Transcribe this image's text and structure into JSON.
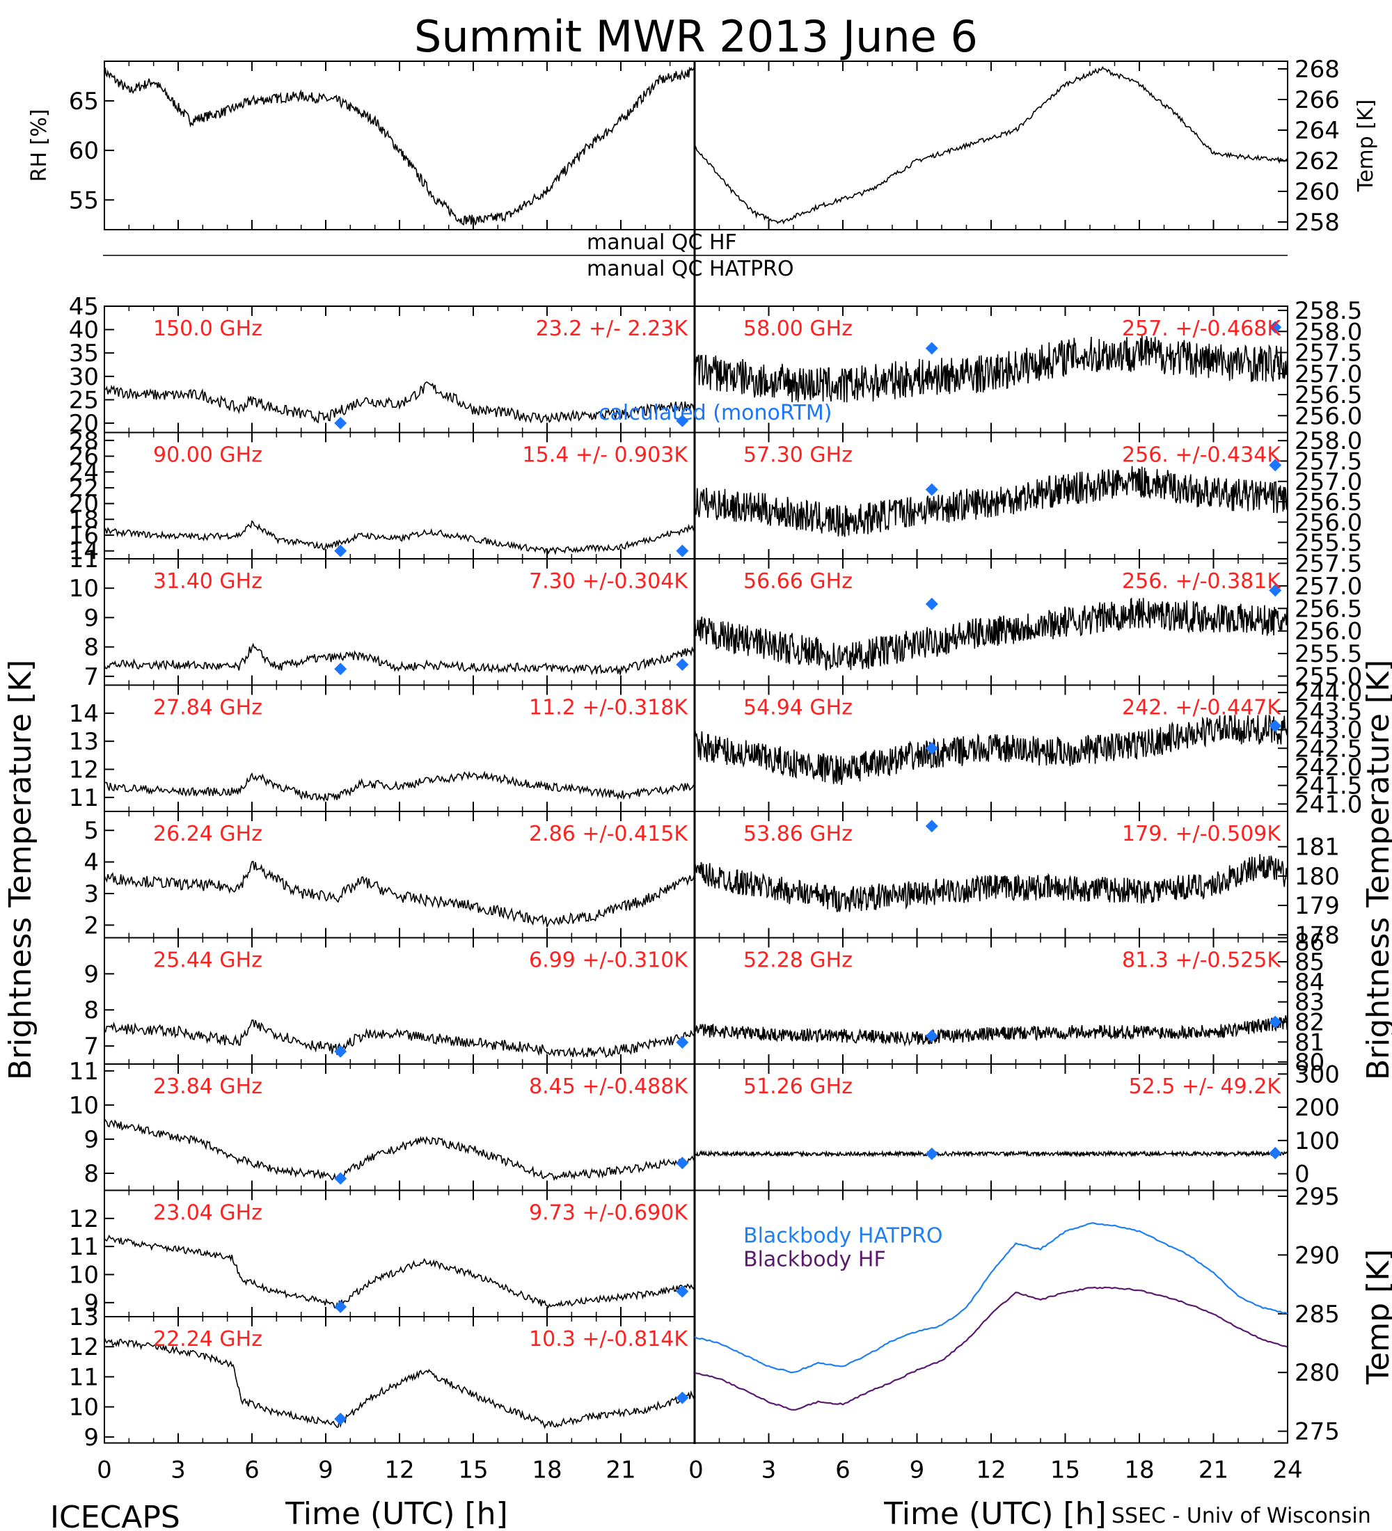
{
  "title": "Summit MWR 2013 June  6",
  "footer": {
    "left": "ICECAPS",
    "right": "SSEC - Univ of Wisconsin"
  },
  "colors": {
    "model_marker": "#1a75ff",
    "channel_label": "#ff2020",
    "hatpro": "#2080f0",
    "hf": "#5a1a6e",
    "trace": "#000000"
  },
  "qc": {
    "hf": "manual  QC HF",
    "hatpro": "manual  QC HATPRO"
  },
  "marker_legend": "calculated (monoRTM)",
  "axes": {
    "xlabel": "Time (UTC) [h]",
    "x_ticks": [
      "0",
      "3",
      "6",
      "9",
      "12",
      "15",
      "18",
      "21",
      "24"
    ],
    "left_ylabel": "Brightness Temperature [K]",
    "right_ylabel": "Brightness Temperature [K]",
    "top_left_ylabel": "RH [%]",
    "top_right_ylabel": "Temp [K]",
    "bottom_right_ylabel": "Temp [K]"
  },
  "chart_data": [
    {
      "type": "line",
      "name": "RH",
      "xlim": [
        0,
        24
      ],
      "ylim": [
        52,
        69
      ],
      "y_ticks": [
        55,
        60,
        65
      ],
      "x": [
        0,
        1,
        2,
        3.5,
        5,
        6,
        8,
        9.5,
        11,
        12,
        13.5,
        14.5,
        15.5,
        16.5,
        18,
        19.5,
        21,
        22.5,
        24
      ],
      "y": [
        68,
        66,
        67,
        63,
        64,
        65,
        65.5,
        65,
        63,
        60,
        55,
        53,
        53,
        53.5,
        56,
        60,
        63,
        67,
        68
      ]
    },
    {
      "type": "line",
      "name": "Temp",
      "xlim": [
        0,
        24
      ],
      "ylim": [
        257.5,
        268.5
      ],
      "y_ticks": [
        258,
        260,
        262,
        264,
        266,
        268
      ],
      "x": [
        0,
        1.5,
        2.5,
        3.5,
        5,
        7,
        9,
        11,
        13,
        15,
        16.5,
        18,
        19.5,
        21,
        22.5,
        24
      ],
      "y": [
        263,
        260,
        258.5,
        258,
        259,
        260,
        262,
        263,
        264,
        267,
        268,
        267,
        265,
        262.5,
        262.2,
        262
      ]
    },
    {
      "type": "line",
      "xlim": [
        0,
        24
      ],
      "x_ticks": [
        0,
        3,
        6,
        9,
        12,
        15,
        18,
        21,
        24
      ],
      "panels": [
        {
          "channel": "150.0 GHz",
          "stat": "23.2 +/-  2.23K",
          "ylim": [
            18,
            45
          ],
          "y_ticks": [
            "20",
            "25",
            "30",
            "35",
            "40",
            "45"
          ],
          "x": [
            0,
            2,
            4,
            5.5,
            6,
            7,
            9,
            10.5,
            12,
            13.2,
            15,
            18,
            21,
            24
          ],
          "y": [
            27,
            26,
            26,
            23,
            25,
            23,
            21,
            25,
            24,
            28,
            23,
            21,
            22,
            24
          ],
          "noise": 1.2,
          "model": [
            [
              9.6,
              20
            ],
            [
              23.5,
              20.5
            ]
          ]
        },
        {
          "channel": "90.00 GHz",
          "stat": "15.4 +/- 0.903K",
          "ylim": [
            13,
            29
          ],
          "y_ticks": [
            "14",
            "16",
            "18",
            "20",
            "22",
            "24",
            "26",
            "28"
          ],
          "x": [
            0,
            2,
            4,
            5.5,
            6,
            7,
            9,
            10.5,
            12,
            13.2,
            15,
            18,
            21,
            24
          ],
          "y": [
            16.5,
            16,
            15.8,
            16,
            17.5,
            15.5,
            14.5,
            16,
            15.5,
            16.5,
            15.5,
            14,
            14.5,
            17
          ],
          "noise": 0.4,
          "model": [
            [
              9.6,
              14
            ],
            [
              23.5,
              14
            ]
          ]
        },
        {
          "channel": "31.40 GHz",
          "stat": "7.30 +/-0.304K",
          "ylim": [
            6.7,
            11
          ],
          "y_ticks": [
            "7",
            "8",
            "9",
            "10",
            "11"
          ],
          "x": [
            0,
            3,
            5.5,
            6,
            7,
            8.5,
            10.5,
            12,
            13.2,
            15,
            18,
            21,
            24
          ],
          "y": [
            7.4,
            7.4,
            7.3,
            8.0,
            7.3,
            7.6,
            7.7,
            7.3,
            7.4,
            7.3,
            7.3,
            7.2,
            7.9
          ],
          "noise": 0.15,
          "model": [
            [
              9.6,
              7.25
            ],
            [
              23.5,
              7.4
            ]
          ]
        },
        {
          "channel": "27.84 GHz",
          "stat": "11.2 +/-0.318K",
          "ylim": [
            10.5,
            15
          ],
          "y_ticks": [
            "11",
            "12",
            "13",
            "14"
          ],
          "x": [
            0,
            3,
            5.5,
            6,
            8,
            9.5,
            10.5,
            12,
            13.2,
            15,
            18,
            21,
            24
          ],
          "y": [
            11.4,
            11.2,
            11.2,
            11.8,
            11.1,
            11.0,
            11.5,
            11.4,
            11.6,
            11.8,
            11.4,
            11.1,
            11.4
          ],
          "noise": 0.15,
          "model": []
        },
        {
          "channel": "26.24 GHz",
          "stat": "2.86 +/-0.415K",
          "ylim": [
            1.6,
            5.6
          ],
          "y_ticks": [
            "2",
            "3",
            "4",
            "5"
          ],
          "x": [
            0,
            3,
            5.5,
            6,
            8,
            9.5,
            10.5,
            12,
            15,
            18,
            20,
            22,
            24
          ],
          "y": [
            3.5,
            3.3,
            3.2,
            3.9,
            3.0,
            2.9,
            3.4,
            2.9,
            2.6,
            2.1,
            2.3,
            2.8,
            3.6
          ],
          "noise": 0.18,
          "model": []
        },
        {
          "channel": "25.44 GHz",
          "stat": "6.99 +/-0.310K",
          "ylim": [
            6.5,
            10
          ],
          "y_ticks": [
            "7",
            "8",
            "9"
          ],
          "x": [
            0,
            3,
            5.5,
            6,
            8,
            9.5,
            10.5,
            12,
            15,
            18,
            20,
            22,
            24
          ],
          "y": [
            7.5,
            7.4,
            7.1,
            7.6,
            7.1,
            6.9,
            7.3,
            7.3,
            7.1,
            6.9,
            6.8,
            7.0,
            7.3
          ],
          "noise": 0.15,
          "model": [
            [
              9.6,
              6.85
            ],
            [
              23.5,
              7.1
            ]
          ]
        },
        {
          "channel": "23.84 GHz",
          "stat": "8.45 +/-0.488K",
          "ylim": [
            7.5,
            11.2
          ],
          "y_ticks": [
            "8",
            "9",
            "10",
            "11"
          ],
          "x": [
            0,
            2,
            4,
            5.5,
            7,
            9.5,
            11,
            13,
            15,
            18,
            20,
            22,
            24
          ],
          "y": [
            9.5,
            9.2,
            8.9,
            8.4,
            8.1,
            7.9,
            8.5,
            9.0,
            8.7,
            7.9,
            8.0,
            8.2,
            8.4
          ],
          "noise": 0.12,
          "model": [
            [
              9.6,
              7.85
            ],
            [
              23.5,
              8.3
            ]
          ]
        },
        {
          "channel": "23.04 GHz",
          "stat": "9.73 +/-0.690K",
          "ylim": [
            8.5,
            13
          ],
          "y_ticks": [
            "9",
            "10",
            "11",
            "12"
          ],
          "x": [
            0,
            2,
            4,
            5.2,
            5.6,
            7,
            9.5,
            11,
            13,
            15,
            18,
            20,
            22,
            24
          ],
          "y": [
            11.3,
            11.0,
            10.8,
            10.6,
            9.8,
            9.4,
            8.9,
            9.8,
            10.5,
            10.0,
            8.9,
            9.1,
            9.3,
            9.6
          ],
          "noise": 0.12,
          "model": [
            [
              9.6,
              8.85
            ],
            [
              23.5,
              9.4
            ]
          ]
        },
        {
          "channel": "22.24 GHz",
          "stat": "10.3 +/-0.814K",
          "ylim": [
            8.8,
            13
          ],
          "y_ticks": [
            "9",
            "10",
            "11",
            "12",
            "13"
          ],
          "x": [
            0,
            2,
            4,
            5.2,
            5.6,
            7,
            9.5,
            11,
            13,
            15,
            18,
            20,
            22,
            24
          ],
          "y": [
            12.2,
            12.0,
            11.7,
            11.4,
            10.2,
            9.8,
            9.4,
            10.4,
            11.2,
            10.4,
            9.4,
            9.7,
            9.9,
            10.4
          ],
          "noise": 0.12,
          "model": [
            [
              9.6,
              9.6
            ],
            [
              23.5,
              10.3
            ]
          ]
        }
      ]
    },
    {
      "type": "line",
      "xlim": [
        0,
        24
      ],
      "x_ticks": [
        0,
        3,
        6,
        9,
        12,
        15,
        18,
        21,
        24
      ],
      "panels": [
        {
          "channel": "58.00 GHz",
          "stat": "257. +/-0.468K",
          "ylim": [
            255.6,
            258.6
          ],
          "y_ticks": [
            "258.5",
            "258.0",
            "257.5",
            "257.0",
            "256.5",
            "256.0"
          ],
          "x": [
            0,
            3,
            6,
            9,
            12,
            15,
            18,
            21,
            24
          ],
          "y": [
            257.1,
            256.8,
            256.7,
            256.9,
            257.0,
            257.4,
            257.5,
            257.3,
            257.2
          ],
          "noise": 0.45,
          "model": [
            [
              9.6,
              257.6
            ],
            [
              23.5,
              258.1
            ]
          ]
        },
        {
          "channel": "57.30 GHz",
          "stat": "256. +/-0.434K",
          "ylim": [
            255.1,
            258.2
          ],
          "y_ticks": [
            "258.0",
            "257.5",
            "257.0",
            "256.5",
            "256.0",
            "255.5"
          ],
          "x": [
            0,
            3,
            6,
            9,
            12,
            15,
            18,
            21,
            24
          ],
          "y": [
            256.5,
            256.3,
            256.0,
            256.3,
            256.5,
            256.8,
            257.0,
            256.7,
            256.6
          ],
          "noise": 0.4,
          "model": [
            [
              9.6,
              256.8
            ],
            [
              23.5,
              257.4
            ]
          ]
        },
        {
          "channel": "56.66 GHz",
          "stat": "256. +/-0.381K",
          "ylim": [
            254.8,
            257.6
          ],
          "y_ticks": [
            "257.5",
            "257.0",
            "256.5",
            "256.0",
            "255.5",
            "255.0"
          ],
          "x": [
            0,
            3,
            6,
            9,
            12,
            15,
            18,
            21,
            24
          ],
          "y": [
            256.0,
            255.7,
            255.4,
            255.7,
            256.0,
            256.2,
            256.4,
            256.3,
            256.2
          ],
          "noise": 0.35,
          "model": [
            [
              9.6,
              256.6
            ],
            [
              23.5,
              256.9
            ]
          ]
        },
        {
          "channel": "54.94 GHz",
          "stat": "242. +/-0.447K",
          "ylim": [
            240.8,
            244.2
          ],
          "y_ticks": [
            "244.0",
            "243.5",
            "243.0",
            "242.5",
            "242.0",
            "241.5",
            "241.0"
          ],
          "x": [
            0,
            3,
            6,
            9,
            12,
            15,
            18,
            21,
            24
          ],
          "y": [
            242.6,
            242.2,
            241.9,
            242.3,
            242.5,
            242.4,
            242.6,
            243.0,
            243.0
          ],
          "noise": 0.4,
          "model": [
            [
              9.6,
              242.5
            ],
            [
              23.5,
              243.1
            ]
          ]
        },
        {
          "channel": "53.86 GHz",
          "stat": "179. +/-0.509K",
          "ylim": [
            177.9,
            182.2
          ],
          "y_ticks": [
            "181",
            "180",
            "179",
            "178"
          ],
          "x": [
            0,
            3,
            6,
            9,
            12,
            15,
            18,
            21,
            23,
            24
          ],
          "y": [
            180.1,
            179.6,
            179.2,
            179.4,
            179.6,
            179.6,
            179.5,
            179.7,
            180.4,
            180.0
          ],
          "noise": 0.45,
          "model": [
            [
              9.6,
              181.7
            ]
          ]
        },
        {
          "channel": "52.28 GHz",
          "stat": "81.3 +/-0.525K",
          "ylim": [
            79.9,
            86.2
          ],
          "y_ticks": [
            "86",
            "85",
            "84",
            "83",
            "82",
            "81",
            "80"
          ],
          "x": [
            0,
            3,
            6,
            9,
            12,
            15,
            18,
            21,
            24
          ],
          "y": [
            81.6,
            81.4,
            81.3,
            81.2,
            81.4,
            81.5,
            81.5,
            81.5,
            82.0
          ],
          "noise": 0.35,
          "model": [
            [
              9.6,
              81.3
            ],
            [
              23.5,
              82.0
            ]
          ]
        },
        {
          "channel": "51.26 GHz",
          "stat": "52.5 +/- 49.2K",
          "ylim": [
            -50,
            330
          ],
          "y_ticks": [
            "300",
            "200",
            "100",
            "0"
          ],
          "x": [
            0,
            6,
            12,
            18,
            24
          ],
          "y": [
            60,
            60,
            60,
            60,
            60
          ],
          "noise": 6,
          "model": [
            [
              9.6,
              60
            ],
            [
              23.5,
              62
            ]
          ]
        }
      ]
    },
    {
      "type": "line",
      "name": "Blackbody",
      "xlim": [
        0,
        24
      ],
      "ylim": [
        274,
        295.5
      ],
      "y_ticks": [
        275,
        280,
        285,
        290,
        295
      ],
      "legend": [
        "Blackbody HATPRO",
        "Blackbody HF"
      ],
      "series": [
        {
          "name": "Blackbody HATPRO",
          "x": [
            0,
            1,
            2,
            3,
            4,
            5,
            6,
            7,
            8,
            9,
            10,
            11,
            12,
            13,
            14,
            15,
            16,
            17,
            18,
            19,
            20,
            21,
            22,
            23,
            24
          ],
          "y": [
            283,
            282.5,
            281.5,
            280.5,
            280,
            280.8,
            280.5,
            281.5,
            282.7,
            283.5,
            284,
            285.5,
            288.5,
            291,
            290.5,
            292,
            292.7,
            292.5,
            292,
            291,
            290,
            288.5,
            286.5,
            285.5,
            285
          ]
        },
        {
          "name": "Blackbody HF",
          "x": [
            0,
            1,
            2,
            3,
            4,
            5,
            6,
            7,
            8,
            9,
            10,
            11,
            12,
            13,
            14,
            15,
            16,
            17,
            18,
            19,
            20,
            21,
            22,
            23,
            24
          ],
          "y": [
            280,
            279.5,
            278.5,
            277.5,
            276.8,
            277.5,
            277.3,
            278.3,
            279.2,
            280.2,
            281,
            282.7,
            285,
            286.8,
            286.2,
            286.8,
            287.2,
            287.2,
            287,
            286.5,
            285.8,
            285,
            283.8,
            282.8,
            282.2
          ]
        }
      ]
    }
  ]
}
